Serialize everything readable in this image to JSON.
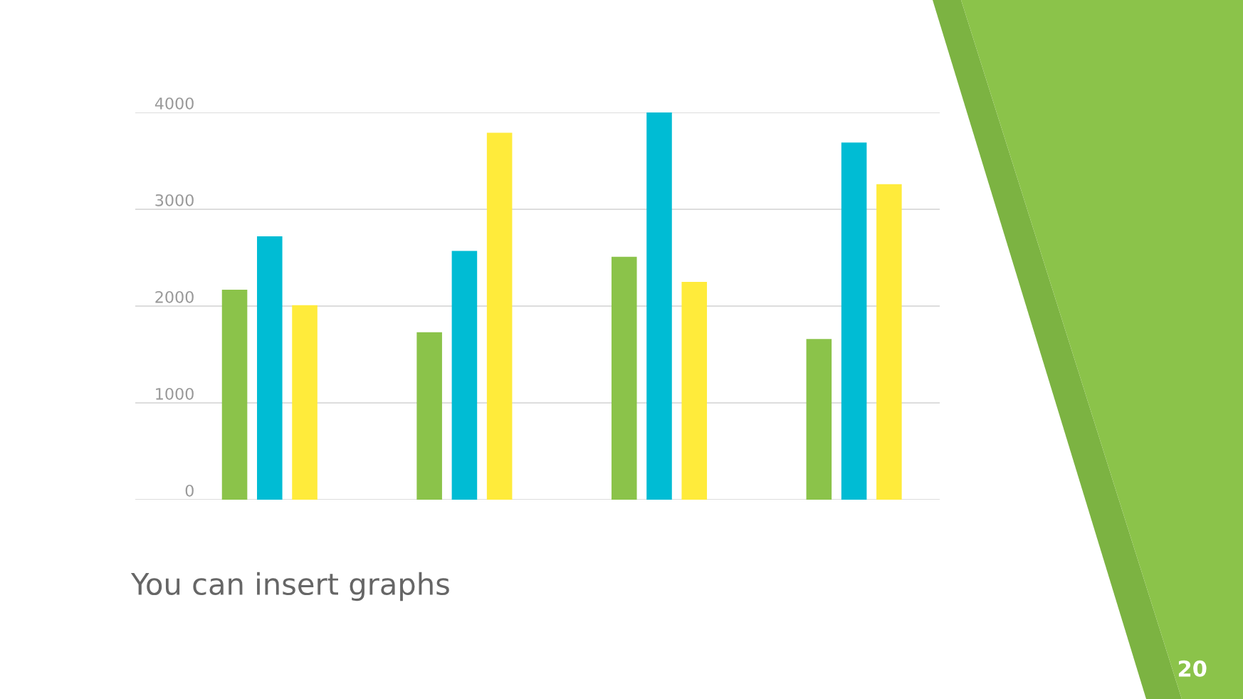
{
  "chart_data": {
    "type": "bar",
    "categories": [
      null,
      null,
      null,
      null
    ],
    "series": [
      {
        "color": "#8bc34a",
        "values": [
          2170,
          1730,
          2510,
          1660
        ]
      },
      {
        "color": "#00bcd4",
        "values": [
          2720,
          2570,
          4000,
          3690
        ]
      },
      {
        "color": "#ffeb3b",
        "values": [
          2010,
          3790,
          2250,
          3260
        ]
      }
    ],
    "ylim": [
      0,
      4000
    ],
    "yticks": [
      0,
      1000,
      2000,
      3000,
      4000
    ],
    "grid": "y",
    "annotations": [
      "You can insert graphs",
      "20"
    ]
  }
}
